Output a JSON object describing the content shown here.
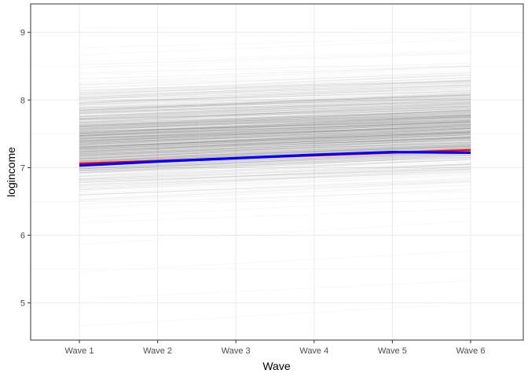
{
  "chart_data": {
    "type": "line",
    "title": "",
    "xlabel": "Wave",
    "ylabel": "logincome",
    "categories": [
      "Wave 1",
      "Wave 2",
      "Wave 3",
      "Wave 4",
      "Wave 5",
      "Wave 6"
    ],
    "ylim": [
      4.45,
      9.42
    ],
    "yticks": [
      5,
      6,
      7,
      8,
      9
    ],
    "grid": true,
    "legend": "none",
    "individual_trajectories": {
      "color": "#000000",
      "opacity": 0.03,
      "start_range": [
        4.66,
        9.07
      ],
      "end_range": [
        4.87,
        9.05
      ],
      "note_dense_center": 7.4
    },
    "series": [
      {
        "color": "#ff0000",
        "values": [
          7.06,
          7.1,
          7.14,
          7.18,
          7.22,
          7.26
        ]
      },
      {
        "color": "#0000ff",
        "values": [
          7.03,
          7.09,
          7.14,
          7.19,
          7.23,
          7.22
        ]
      }
    ]
  }
}
